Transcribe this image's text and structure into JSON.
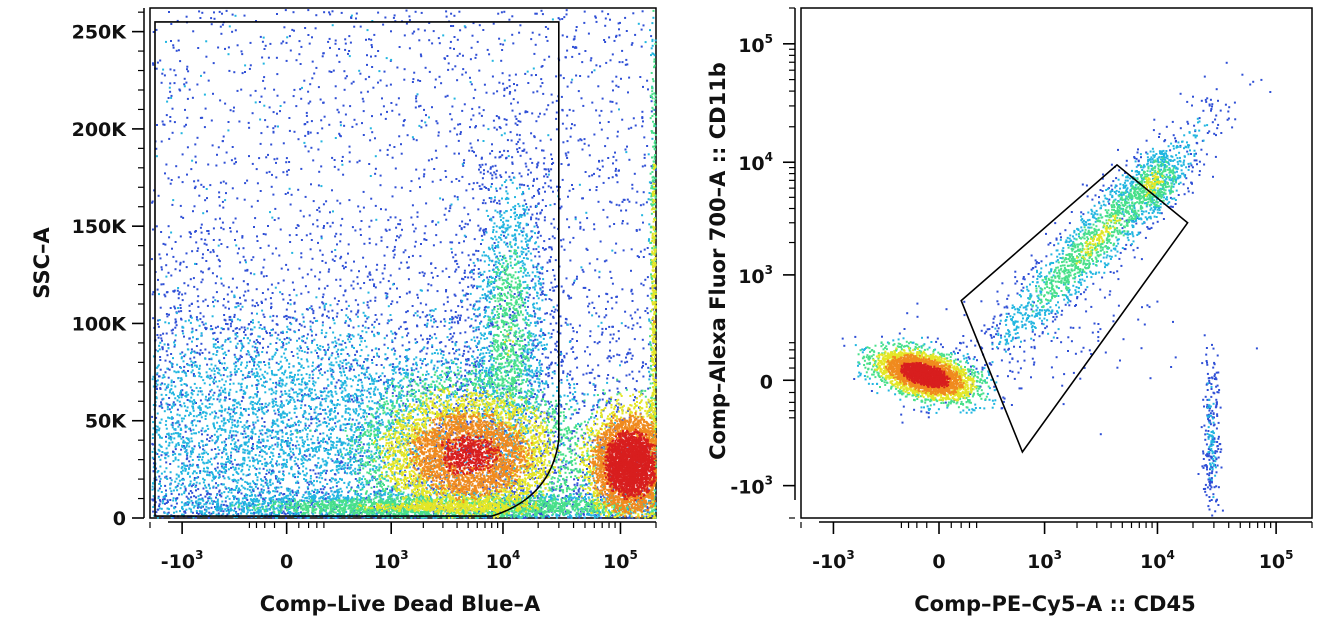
{
  "chart_data": [
    {
      "type": "scatter",
      "xlabel": "Comp–Live Dead Blue–A",
      "ylabel": "SSC–A",
      "x_scale": "biexponential",
      "y_scale": "linear",
      "xlim": [
        -2000,
        200000
      ],
      "ylim": [
        0,
        262144
      ],
      "x_ticks": [
        {
          "value": -1000,
          "base": "-10",
          "exp": "3"
        },
        {
          "value": 0,
          "base": "0",
          "exp": ""
        },
        {
          "value": 1000,
          "base": "10",
          "exp": "3"
        },
        {
          "value": 10000,
          "base": "10",
          "exp": "4"
        },
        {
          "value": 100000,
          "base": "10",
          "exp": "5"
        }
      ],
      "y_ticks": [
        {
          "value": 0,
          "label": "0"
        },
        {
          "value": 50000,
          "label": "50K"
        },
        {
          "value": 100000,
          "label": "100K"
        },
        {
          "value": 150000,
          "label": "150K"
        },
        {
          "value": 200000,
          "label": "200K"
        },
        {
          "value": 250000,
          "label": "250K"
        }
      ],
      "populations": [
        {
          "center_x": 5000,
          "center_y": 33000,
          "density": "high",
          "shape": "elongated vertical"
        },
        {
          "center_x": 120000,
          "center_y": 28000,
          "density": "very high",
          "shape": "compact"
        },
        {
          "center_x": 0,
          "center_y": 45000,
          "density": "low",
          "shape": "diffuse broad"
        }
      ],
      "gate": {
        "shape": "polygon",
        "vertices": [
          [
            -1800,
            1000
          ],
          [
            -1800,
            255000
          ],
          [
            30000,
            255000
          ],
          [
            30000,
            40000
          ],
          [
            8000,
            1000
          ]
        ]
      },
      "colormap": [
        "#2f4fd6",
        "#22b6e0",
        "#48e08a",
        "#e4e626",
        "#f08a1e",
        "#d81e1e"
      ],
      "grid": false
    },
    {
      "type": "scatter",
      "xlabel": "Comp–PE–Cy5–A :: CD45",
      "ylabel": "Comp–Alexa Fluor 700–A :: CD11b",
      "x_scale": "biexponential",
      "y_scale": "biexponential",
      "xlim": [
        -2000,
        200000
      ],
      "ylim": [
        -2000,
        200000
      ],
      "x_ticks": [
        {
          "value": -1000,
          "base": "-10",
          "exp": "3"
        },
        {
          "value": 0,
          "base": "0",
          "exp": ""
        },
        {
          "value": 1000,
          "base": "10",
          "exp": "3"
        },
        {
          "value": 10000,
          "base": "10",
          "exp": "4"
        },
        {
          "value": 100000,
          "base": "10",
          "exp": "5"
        }
      ],
      "y_ticks": [
        {
          "value": -1000,
          "base": "-10",
          "exp": "3"
        },
        {
          "value": 0,
          "base": "0",
          "exp": ""
        },
        {
          "value": 1000,
          "base": "10",
          "exp": "3"
        },
        {
          "value": 10000,
          "base": "10",
          "exp": "4"
        },
        {
          "value": 100000,
          "base": "10",
          "exp": "5"
        }
      ],
      "populations": [
        {
          "center_x": -50,
          "center_y": 20,
          "density": "very high",
          "shape": "compact oval"
        },
        {
          "center_x": 3000,
          "center_y": 2200,
          "density": "medium",
          "shape": "diagonal band"
        },
        {
          "center_x": 28000,
          "center_y": -300,
          "density": "low",
          "shape": "vertical streak"
        }
      ],
      "gate": {
        "shape": "rectangle-rotated",
        "vertices": [
          [
            80,
            550
          ],
          [
            4500,
            9500
          ],
          [
            18000,
            3000
          ],
          [
            600,
            -450
          ]
        ]
      },
      "colormap": [
        "#2f4fd6",
        "#22b6e0",
        "#48e08a",
        "#e4e626",
        "#f08a1e",
        "#d81e1e"
      ],
      "grid": false
    }
  ]
}
